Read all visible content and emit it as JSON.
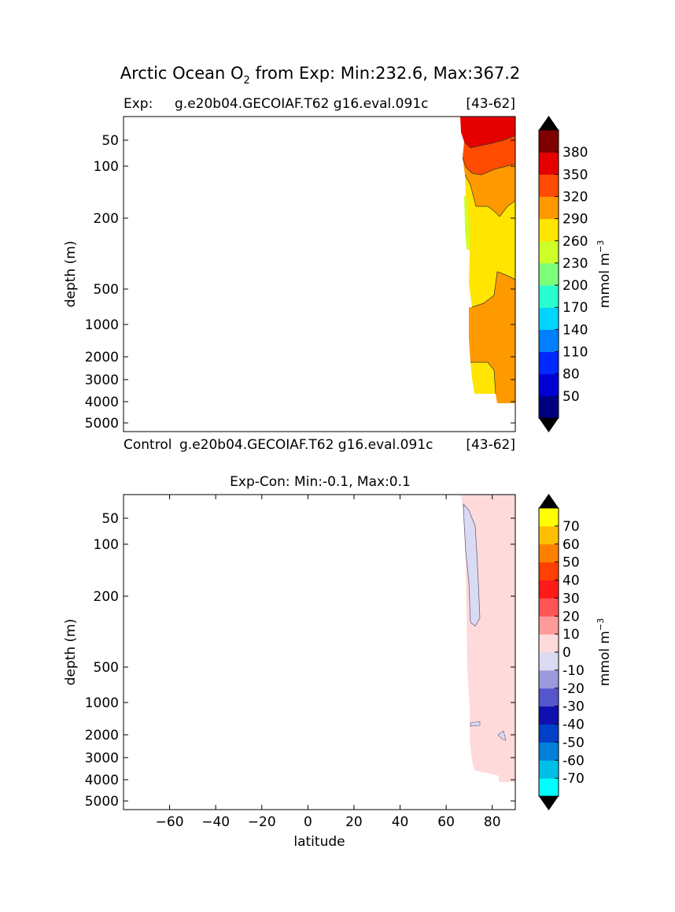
{
  "figure": {
    "title_main": "Arctic Ocean O",
    "title_sub": "2",
    "title_rest": " from Exp: Min:232.6, Max:367.2"
  },
  "chart_data": [
    {
      "type": "heatmap",
      "left_label": "Exp:",
      "center_label": "g.e20b04.GECOIAF.T62 g16.eval.091c",
      "right_label": "[43-62]",
      "xlabel": "",
      "ylabel": "depth (m)",
      "xlim": [
        -80,
        90
      ],
      "ylim": [
        5500,
        20
      ],
      "yticks": [
        50,
        100,
        200,
        500,
        1000,
        2000,
        3000,
        4000,
        5000
      ],
      "colorbar": {
        "label": "mmol m",
        "label_sup": "−3",
        "levels": [
          20,
          50,
          80,
          110,
          140,
          170,
          200,
          230,
          260,
          290,
          320,
          350,
          380,
          410
        ],
        "tick_labels": [
          "50",
          "80",
          "110",
          "140",
          "170",
          "200",
          "230",
          "260",
          "290",
          "320",
          "350",
          "380"
        ],
        "colors": [
          "#00007f",
          "#0000d4",
          "#0029ff",
          "#0080ff",
          "#00d4ff",
          "#29ffce",
          "#7dff7a",
          "#ceff29",
          "#ffe500",
          "#ff9900",
          "#ff4c00",
          "#e50000",
          "#7f0000"
        ],
        "extend_low": "#000000",
        "extend_high": "#000000"
      },
      "field_bands": [
        {
          "z_top": 20,
          "z_bottom": 80,
          "value": 360
        },
        {
          "z_top": 80,
          "z_bottom": 130,
          "value": 335
        },
        {
          "z_top": 130,
          "z_bottom": 400,
          "value": 275
        },
        {
          "z_top": 400,
          "z_bottom": 4100,
          "value": 305
        }
      ]
    },
    {
      "type": "heatmap",
      "left_label": "Control",
      "center_label": "g.e20b04.GECOIAF.T62 g16.eval.091c",
      "right_label": "[43-62]",
      "title": "Exp-Con: Min:-0.1, Max:0.1",
      "xlabel": "latitude",
      "ylabel": "depth (m)",
      "xlim": [
        -80,
        90
      ],
      "ylim": [
        5500,
        20
      ],
      "xticks": [
        -60,
        -40,
        -20,
        0,
        20,
        40,
        60,
        80
      ],
      "xtick_labels": [
        "−60",
        "−40",
        "−20",
        "0",
        "20",
        "40",
        "60",
        "80"
      ],
      "yticks": [
        50,
        100,
        200,
        500,
        1000,
        2000,
        3000,
        4000,
        5000
      ],
      "colorbar": {
        "label": "mmol m",
        "label_sup": "−3",
        "levels": [
          -80,
          -70,
          -60,
          -50,
          -40,
          -30,
          -20,
          -10,
          0,
          10,
          20,
          30,
          40,
          50,
          60,
          70,
          80
        ],
        "tick_labels": [
          "-70",
          "-60",
          "-50",
          "-40",
          "-30",
          "-20",
          "-10",
          "0",
          "10",
          "20",
          "30",
          "40",
          "50",
          "60",
          "70"
        ],
        "colors": [
          "#00ffff",
          "#00bfe6",
          "#0080d9",
          "#0040c8",
          "#1010b0",
          "#5555cc",
          "#9a9add",
          "#dadaf2",
          "#ffdada",
          "#ff9a9a",
          "#ff5555",
          "#ff1a1a",
          "#ff4000",
          "#ff8000",
          "#ffbf00",
          "#ffff00"
        ],
        "extend_low": "#000000",
        "extend_high": "#000000"
      }
    }
  ]
}
